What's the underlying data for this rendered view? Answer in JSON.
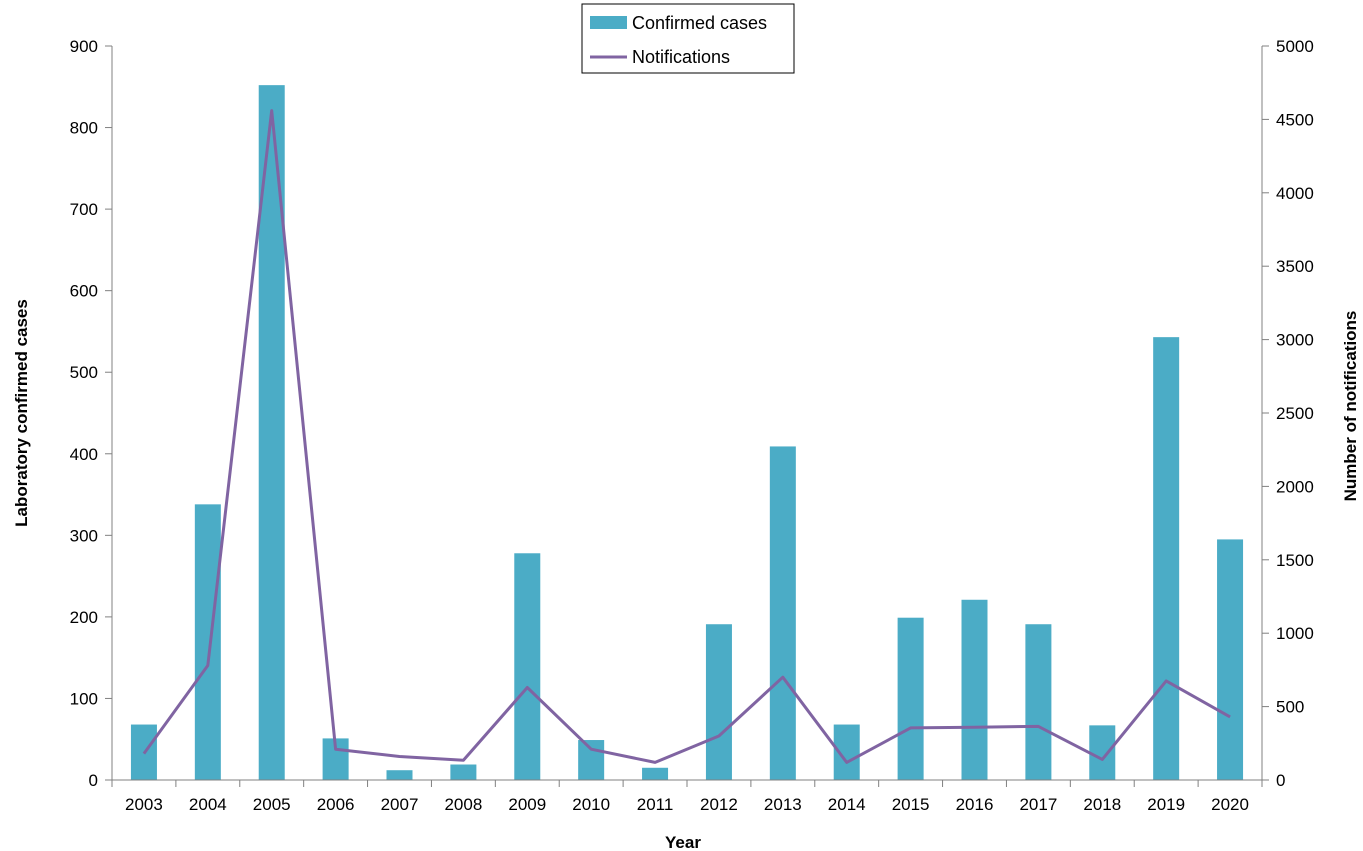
{
  "chart_data": {
    "type": "bar",
    "categories": [
      "2003",
      "2004",
      "2005",
      "2006",
      "2007",
      "2008",
      "2009",
      "2010",
      "2011",
      "2012",
      "2013",
      "2014",
      "2015",
      "2016",
      "2017",
      "2018",
      "2019",
      "2020"
    ],
    "series": [
      {
        "name": "Confirmed cases",
        "type": "bar",
        "axis": "left",
        "color": "#4BACC6",
        "values": [
          68,
          338,
          852,
          51,
          12,
          19,
          278,
          49,
          15,
          191,
          409,
          68,
          199,
          221,
          191,
          67,
          543,
          295
        ]
      },
      {
        "name": "Notifications",
        "type": "line",
        "axis": "right",
        "color": "#8064A2",
        "values": [
          180,
          780,
          4560,
          210,
          160,
          135,
          630,
          210,
          120,
          300,
          700,
          120,
          355,
          360,
          365,
          140,
          675,
          430
        ]
      }
    ],
    "xlabel": "Year",
    "ylabel": "Laboratory confirmed cases",
    "y2label": "Number of notifications",
    "ylim": [
      0,
      900
    ],
    "yticks": [
      "0",
      "100",
      "200",
      "300",
      "400",
      "500",
      "600",
      "700",
      "800",
      "900"
    ],
    "y2lim": [
      0,
      5000
    ],
    "y2ticks": [
      "0",
      "500",
      "1000",
      "1500",
      "2000",
      "2500",
      "3000",
      "3500",
      "4000",
      "4500",
      "5000"
    ],
    "grid": false,
    "legend": "top-center"
  }
}
